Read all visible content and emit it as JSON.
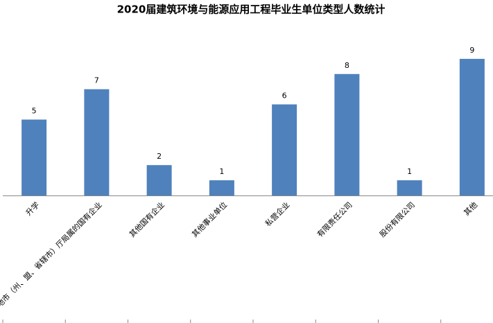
{
  "chart_data": {
    "type": "bar",
    "title": "2020届建筑环境与能源应用工程毕业生单位类型人数统计",
    "categories": [
      "升学",
      "地市（州、盟、省辖市）厅局属的国有企业",
      "其他国有企业",
      "其他事业单位",
      "私营企业",
      "有限责任公司",
      "股份有限公司",
      "其他"
    ],
    "values": [
      5,
      7,
      2,
      1,
      6,
      8,
      1,
      9
    ],
    "color": "#4f81bd",
    "ylim": [
      0,
      10
    ]
  }
}
